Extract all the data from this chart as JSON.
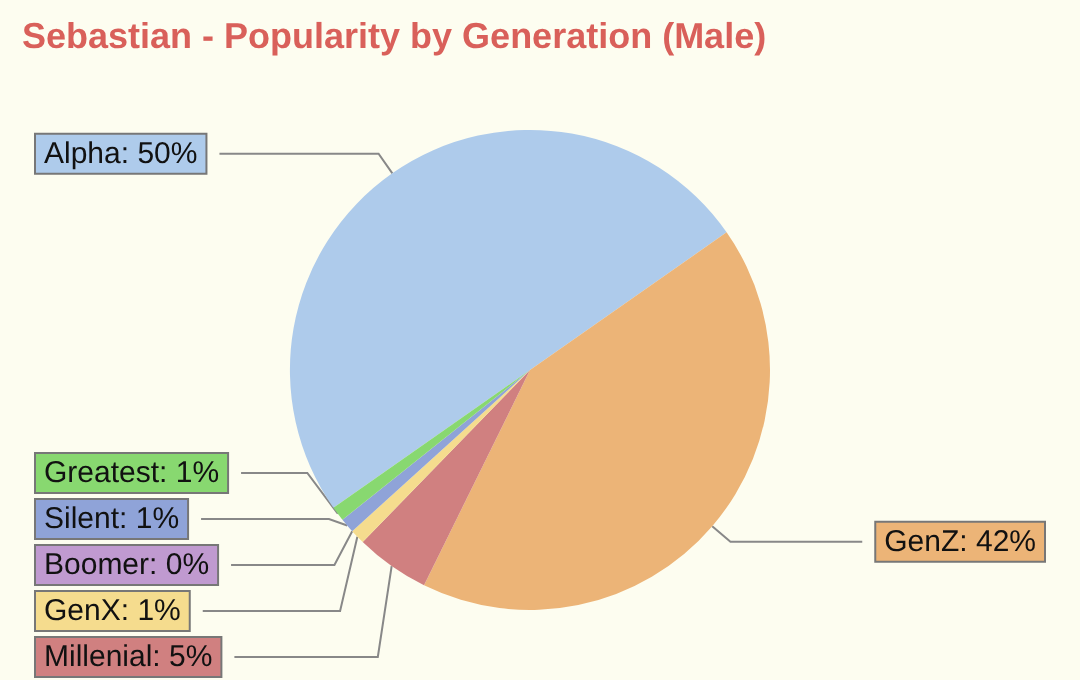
{
  "chart_data": {
    "type": "pie",
    "title": "Sebastian - Popularity by Generation (Male)",
    "categories": [
      "Alpha",
      "GenZ",
      "Millenial",
      "GenX",
      "Boomer",
      "Silent",
      "Greatest"
    ],
    "values": [
      50,
      42,
      5,
      1,
      0,
      1,
      1
    ],
    "colors": [
      "#aecbeb",
      "#ecb477",
      "#d08080",
      "#f5dc8e",
      "#c09ad0",
      "#8fa3d8",
      "#88d870"
    ],
    "value_labels": [
      "50%",
      "42%",
      "5%",
      "1%",
      "0%",
      "1%",
      "1%"
    ]
  }
}
